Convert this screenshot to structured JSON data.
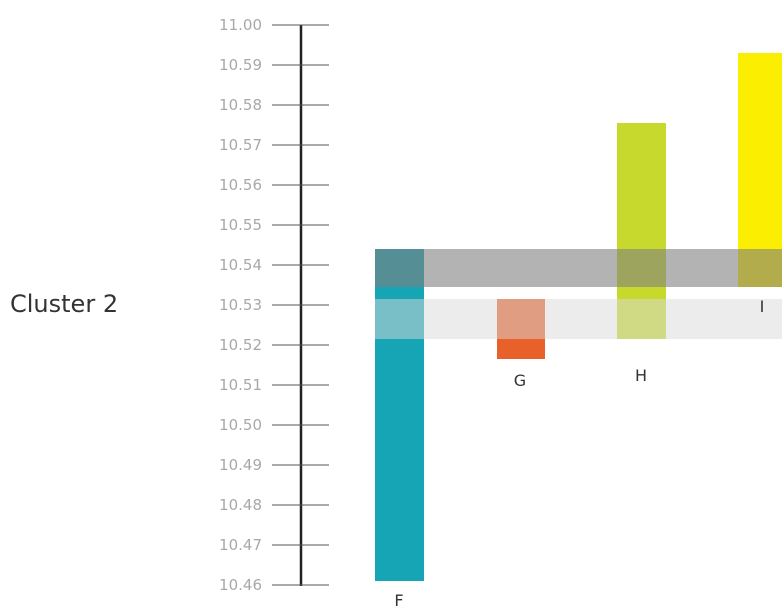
{
  "chart_data": {
    "type": "bar",
    "cluster_label": "Cluster 2",
    "yticks": [
      "11.00",
      "10.59",
      "10.58",
      "10.57",
      "10.56",
      "10.55",
      "10.54",
      "10.53",
      "10.52",
      "10.51",
      "10.50",
      "10.49",
      "10.48",
      "10.47",
      "10.46"
    ],
    "categories": [
      "F",
      "G",
      "H",
      "I"
    ],
    "bars": [
      {
        "label": "F",
        "low": 10.461,
        "high": 10.544,
        "color": "#16a5b5"
      },
      {
        "label": "G",
        "low": 10.5165,
        "high": 10.5315,
        "color": "#e8612a"
      },
      {
        "label": "H",
        "low": 10.5215,
        "high": 10.5755,
        "color": "#c6d92c"
      },
      {
        "label": "I",
        "low": 10.5345,
        "high": 10.593,
        "color": "#fcee00"
      }
    ],
    "bands": [
      {
        "low": 10.5345,
        "high": 10.544,
        "color": "#808080",
        "opacity": 0.6
      },
      {
        "low": 10.5215,
        "high": 10.5315,
        "color": "#d9d9d9",
        "opacity": 0.5
      }
    ],
    "ylim": [
      10.46,
      11.0
    ]
  }
}
